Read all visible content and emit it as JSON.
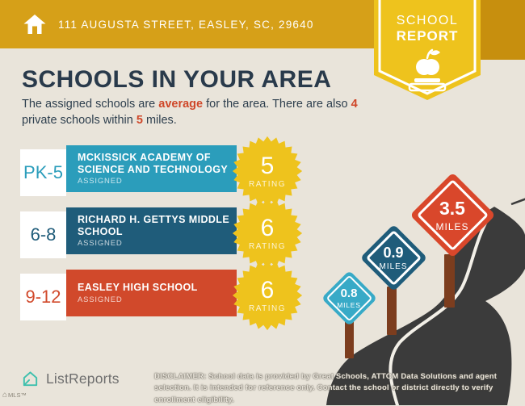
{
  "header": {
    "address": "111 AUGUSTA STREET, EASLEY, SC, 29640",
    "badge_line1": "SCHOOL",
    "badge_line2": "REPORT"
  },
  "intro": {
    "title": "SCHOOLS IN YOUR AREA",
    "subtitle": {
      "seg1": "The assigned schools are ",
      "highlight1": "average",
      "seg2": " for the area. There are also ",
      "highlight2": "4",
      "seg3": " private schools within ",
      "highlight3": "5",
      "seg4": " miles."
    }
  },
  "schools": [
    {
      "grades": "PK-5",
      "name": "MCKISSICK ACADEMY OF SCIENCE AND TECHNOLOGY",
      "status": "ASSIGNED",
      "rating": "5",
      "rating_label": "RATING",
      "color": "#2b9dbb"
    },
    {
      "grades": "6-8",
      "name": "RICHARD H. GETTYS MIDDLE SCHOOL",
      "status": "ASSIGNED",
      "rating": "6",
      "rating_label": "RATING",
      "color": "#1f5c7a"
    },
    {
      "grades": "9-12",
      "name": "EASLEY HIGH SCHOOL",
      "status": "ASSIGNED",
      "rating": "6",
      "rating_label": "RATING",
      "color": "#d1492b"
    }
  ],
  "signs": [
    {
      "value": "0.8",
      "unit": "MILES",
      "color": "#38aac7"
    },
    {
      "value": "0.9",
      "unit": "MILES",
      "color": "#1f5c7a"
    },
    {
      "value": "3.5",
      "unit": "MILES",
      "color": "#d9472b"
    }
  ],
  "footer": {
    "brand": "ListReports",
    "disclaimer_label": "DISCLAIMER:",
    "disclaimer_text": "School data is provided by Great Schools, ATTOM Data Solutions and agent selection. It is intended for reference only. Contact the school or district directly to verify enrollment eligibility.",
    "watermark": "MLS™"
  },
  "colors": {
    "header_gold": "#d6a018",
    "header_gold_dark": "#c78f0e",
    "badge_gold": "#eec31d",
    "background": "#e9e4da",
    "navy": "#293a4b",
    "accent_red": "#cf4729",
    "burst_gold": "#eec31d",
    "road": "#3b3b3b",
    "post_brown": "#7c3d1e",
    "brand_teal": "#3ec0ad"
  }
}
